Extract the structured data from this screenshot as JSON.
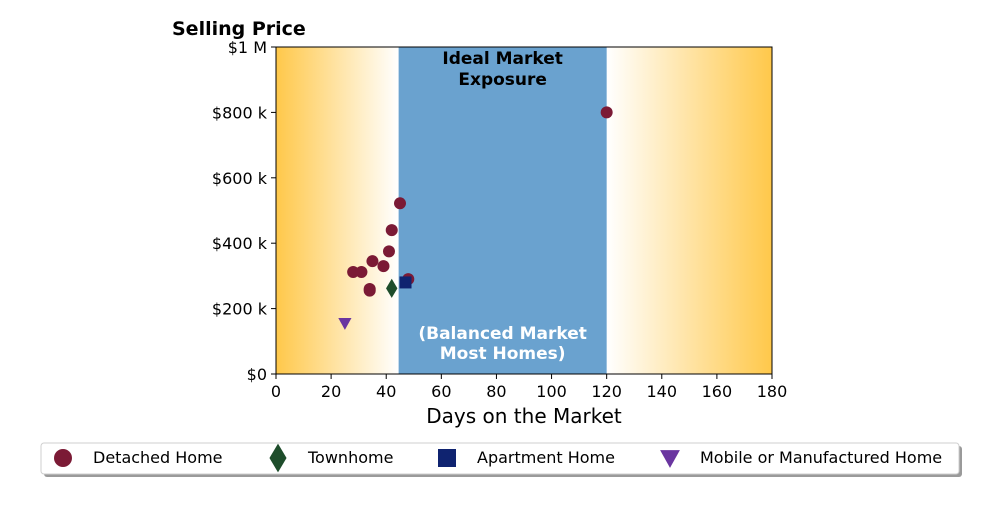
{
  "chart_data": {
    "type": "scatter",
    "title": "Selling Price",
    "xlabel": "Days on the Market",
    "ylabel": "",
    "xlim": [
      0,
      180
    ],
    "ylim": [
      0,
      1000000
    ],
    "xticks": [
      {
        "value": 0,
        "label": "0"
      },
      {
        "value": 20,
        "label": "20"
      },
      {
        "value": 40,
        "label": "40"
      },
      {
        "value": 60,
        "label": "60"
      },
      {
        "value": 80,
        "label": "80"
      },
      {
        "value": 100,
        "label": "100"
      },
      {
        "value": 120,
        "label": "120"
      },
      {
        "value": 140,
        "label": "140"
      },
      {
        "value": 160,
        "label": "160"
      },
      {
        "value": 180,
        "label": "180"
      }
    ],
    "yticks": [
      {
        "value": 0,
        "label": "$0"
      },
      {
        "value": 200000,
        "label": "$200 k"
      },
      {
        "value": 400000,
        "label": "$400 k"
      },
      {
        "value": 600000,
        "label": "$600 k"
      },
      {
        "value": 800000,
        "label": "$800 k"
      },
      {
        "value": 1000000,
        "label": "$1 M"
      }
    ],
    "grid": false,
    "background_band": {
      "x_start": 44.5,
      "x_end": 120,
      "color": "#6aa2cf",
      "label_top": [
        "Ideal Market",
        "Exposure"
      ],
      "label_bottom": [
        "(Balanced Market",
        "Most Homes)"
      ]
    },
    "gradient": {
      "edge_color": "#ffc84a",
      "center_color": "#ffffff"
    },
    "legend_position": "bottom",
    "series": [
      {
        "name": "Detached Home",
        "marker": "circle",
        "color": "#7b1a35",
        "points": [
          {
            "x": 28,
            "y": 312000
          },
          {
            "x": 31,
            "y": 312000
          },
          {
            "x": 34,
            "y": 255000
          },
          {
            "x": 34,
            "y": 260000
          },
          {
            "x": 35,
            "y": 345000
          },
          {
            "x": 39,
            "y": 330000
          },
          {
            "x": 41,
            "y": 375000
          },
          {
            "x": 42,
            "y": 440000
          },
          {
            "x": 45,
            "y": 522000
          },
          {
            "x": 48,
            "y": 290000
          },
          {
            "x": 120,
            "y": 800000
          }
        ]
      },
      {
        "name": "Townhome",
        "marker": "diamond",
        "color": "#1e4d2b",
        "points": [
          {
            "x": 42,
            "y": 262000
          }
        ]
      },
      {
        "name": "Apartment Home",
        "marker": "square",
        "color": "#0f2370",
        "points": [
          {
            "x": 47,
            "y": 280000
          }
        ]
      },
      {
        "name": "Mobile or Manufactured Home",
        "marker": "triangle-down",
        "color": "#6a35a0",
        "points": [
          {
            "x": 25,
            "y": 155000
          }
        ]
      }
    ]
  }
}
